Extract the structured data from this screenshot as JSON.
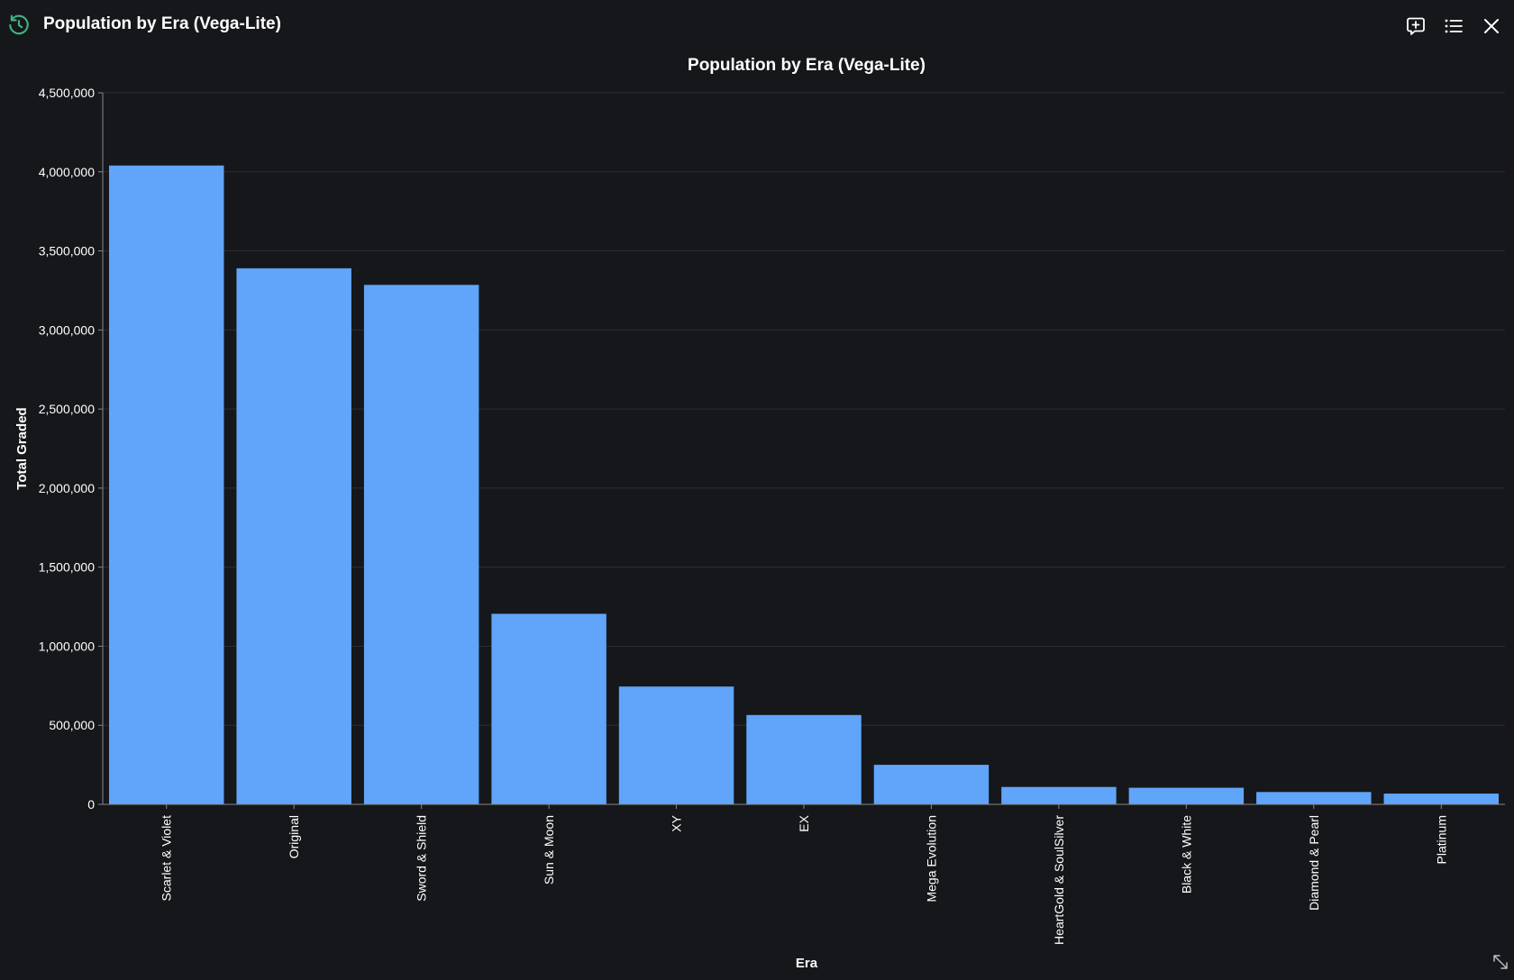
{
  "window": {
    "title": "Population by Era (Vega-Lite)",
    "icons": {
      "history": "history-icon",
      "comment": "comment-add-icon",
      "list": "list-icon",
      "close": "close-icon",
      "resize": "resize-icon"
    }
  },
  "colors": {
    "background": "#16171b",
    "bar": "#60a5fa",
    "grid": "#2c2e33",
    "accent": "#3fb27f"
  },
  "chart_data": {
    "type": "bar",
    "title": "Population by Era (Vega-Lite)",
    "xlabel": "Era",
    "ylabel": "Total Graded",
    "ylim": [
      0,
      4500000
    ],
    "yticks": [
      0,
      500000,
      1000000,
      1500000,
      2000000,
      2500000,
      3000000,
      3500000,
      4000000,
      4500000
    ],
    "ytick_labels": [
      "0",
      "500,000",
      "1,000,000",
      "1,500,000",
      "2,000,000",
      "2,500,000",
      "3,000,000",
      "3,500,000",
      "4,000,000",
      "4,500,000"
    ],
    "grid": true,
    "categories": [
      "Scarlet & Violet",
      "Original",
      "Sword & Shield",
      "Sun & Moon",
      "XY",
      "EX",
      "Mega Evolution",
      "HeartGold & SoulSilver",
      "Black & White",
      "Diamond & Pearl",
      "Platinum"
    ],
    "values": [
      4040000,
      3390000,
      3285000,
      1205000,
      745000,
      565000,
      250000,
      110000,
      105000,
      78000,
      68000
    ]
  }
}
